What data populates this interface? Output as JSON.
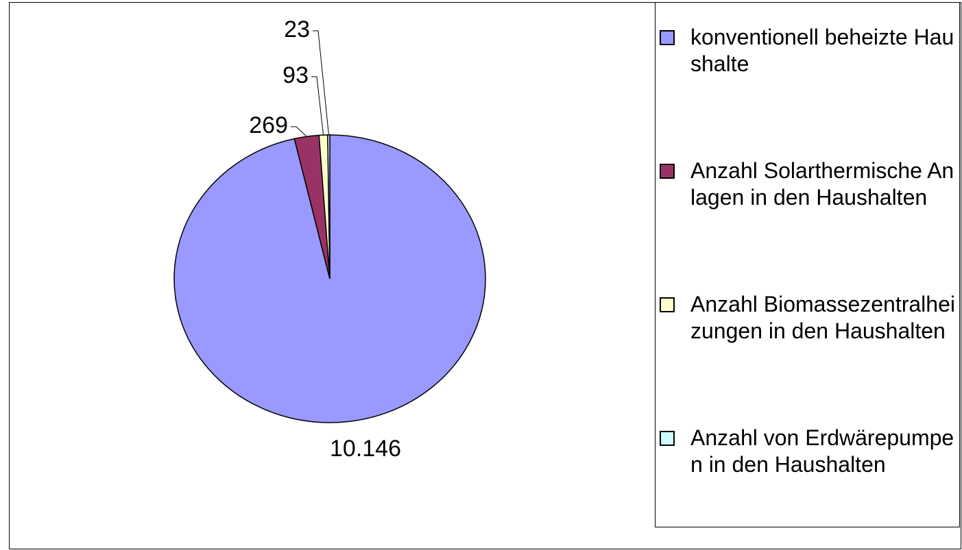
{
  "chart_data": {
    "type": "pie",
    "categories": [
      "konventionell beheizte Haushalte",
      "Anzahl Solarthermische Anlagen in den Haushalten",
      "Anzahl Biomassezentralheizungen in den Haushalten",
      "Anzahl von Erdwärepumpen in den Haushalten"
    ],
    "values": [
      10146,
      269,
      93,
      23
    ],
    "value_labels": [
      "10.146",
      "269",
      "93",
      "23"
    ],
    "colors": [
      "#9999ff",
      "#993366",
      "#ffffcc",
      "#ccffff"
    ],
    "legend": "right"
  }
}
